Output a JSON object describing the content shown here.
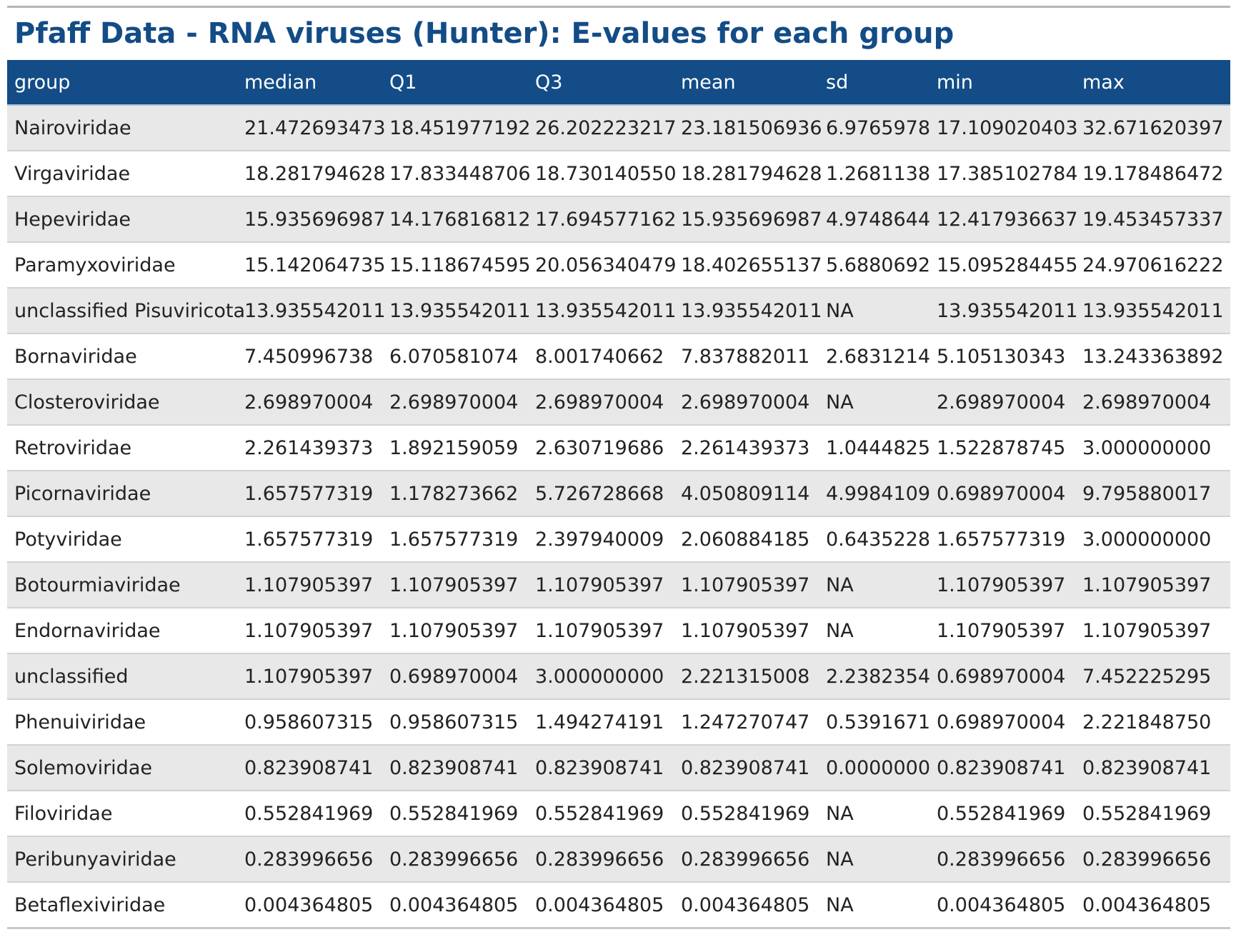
{
  "title": "Pfaff Data - RNA viruses (Hunter): E-values for each group",
  "table": {
    "columns": [
      "group",
      "median",
      "Q1",
      "Q3",
      "mean",
      "sd",
      "min",
      "max"
    ],
    "rows": [
      [
        "Nairoviridae",
        "21.472693473",
        "18.451977192",
        "26.202223217",
        "23.181506936",
        "6.9765978",
        "17.109020403",
        "32.671620397"
      ],
      [
        "Virgaviridae",
        "18.281794628",
        "17.833448706",
        "18.730140550",
        "18.281794628",
        "1.2681138",
        "17.385102784",
        "19.178486472"
      ],
      [
        "Hepeviridae",
        "15.935696987",
        "14.176816812",
        "17.694577162",
        "15.935696987",
        "4.9748644",
        "12.417936637",
        "19.453457337"
      ],
      [
        "Paramyxoviridae",
        "15.142064735",
        "15.118674595",
        "20.056340479",
        "18.402655137",
        "5.6880692",
        "15.095284455",
        "24.970616222"
      ],
      [
        "unclassified Pisuviricota",
        "13.935542011",
        "13.935542011",
        "13.935542011",
        "13.935542011",
        "NA",
        "13.935542011",
        "13.935542011"
      ],
      [
        "Bornaviridae",
        "7.450996738",
        "6.070581074",
        "8.001740662",
        "7.837882011",
        "2.6831214",
        "5.105130343",
        "13.243363892"
      ],
      [
        "Closteroviridae",
        "2.698970004",
        "2.698970004",
        "2.698970004",
        "2.698970004",
        "NA",
        "2.698970004",
        "2.698970004"
      ],
      [
        "Retroviridae",
        "2.261439373",
        "1.892159059",
        "2.630719686",
        "2.261439373",
        "1.0444825",
        "1.522878745",
        "3.000000000"
      ],
      [
        "Picornaviridae",
        "1.657577319",
        "1.178273662",
        "5.726728668",
        "4.050809114",
        "4.9984109",
        "0.698970004",
        "9.795880017"
      ],
      [
        "Potyviridae",
        "1.657577319",
        "1.657577319",
        "2.397940009",
        "2.060884185",
        "0.6435228",
        "1.657577319",
        "3.000000000"
      ],
      [
        "Botourmiaviridae",
        "1.107905397",
        "1.107905397",
        "1.107905397",
        "1.107905397",
        "NA",
        "1.107905397",
        "1.107905397"
      ],
      [
        "Endornaviridae",
        "1.107905397",
        "1.107905397",
        "1.107905397",
        "1.107905397",
        "NA",
        "1.107905397",
        "1.107905397"
      ],
      [
        "unclassified",
        "1.107905397",
        "0.698970004",
        "3.000000000",
        "2.221315008",
        "2.2382354",
        "0.698970004",
        "7.452225295"
      ],
      [
        "Phenuiviridae",
        "0.958607315",
        "0.958607315",
        "1.494274191",
        "1.247270747",
        "0.5391671",
        "0.698970004",
        "2.221848750"
      ],
      [
        "Solemoviridae",
        "0.823908741",
        "0.823908741",
        "0.823908741",
        "0.823908741",
        "0.0000000",
        "0.823908741",
        "0.823908741"
      ],
      [
        "Filoviridae",
        "0.552841969",
        "0.552841969",
        "0.552841969",
        "0.552841969",
        "NA",
        "0.552841969",
        "0.552841969"
      ],
      [
        "Peribunyaviridae",
        "0.283996656",
        "0.283996656",
        "0.283996656",
        "0.283996656",
        "NA",
        "0.283996656",
        "0.283996656"
      ],
      [
        "Betaflexiviridae",
        "0.004364805",
        "0.004364805",
        "0.004364805",
        "0.004364805",
        "NA",
        "0.004364805",
        "0.004364805"
      ]
    ]
  },
  "colors": {
    "accent": "#134c86",
    "header_text": "#ffffff",
    "stripe": "#e8e8e8"
  }
}
